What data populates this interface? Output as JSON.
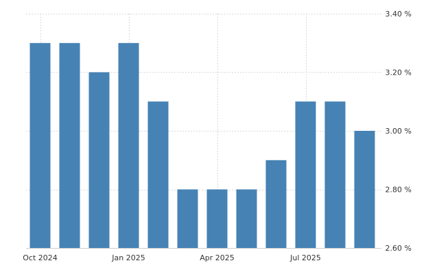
{
  "chart_data": {
    "type": "bar",
    "title": "",
    "xlabel": "",
    "ylabel": "",
    "categories": [
      "Oct 2024",
      "Nov 2024",
      "Dec 2024",
      "Jan 2025",
      "Feb 2025",
      "Mar 2025",
      "Apr 2025",
      "May 2025",
      "Jun 2025",
      "Jul 2025",
      "Aug 2025",
      "Sep 2025"
    ],
    "values": [
      3.3,
      3.3,
      3.2,
      3.3,
      3.1,
      2.8,
      2.8,
      2.8,
      2.9,
      3.1,
      3.1,
      3.0
    ],
    "ylim": [
      2.6,
      3.4
    ],
    "y_ticks": [
      2.6,
      2.8,
      3.0,
      3.2,
      3.4
    ],
    "y_tick_labels": [
      "2.60 %",
      "2.80 %",
      "3.00 %",
      "3.20 %",
      "3.40 %"
    ],
    "x_tick_labels": [
      {
        "category": "Oct 2024",
        "label": "Oct 2024"
      },
      {
        "category": "Jan 2025",
        "label": "Jan 2025"
      },
      {
        "category": "Apr 2025",
        "label": "Apr 2025"
      },
      {
        "category": "Jul 2025",
        "label": "Jul 2025"
      }
    ],
    "y_axis_position": "right",
    "grid": true,
    "bar_color": "#4682b4",
    "grid_color": "#d8d8d8",
    "text_color": "#333333"
  }
}
